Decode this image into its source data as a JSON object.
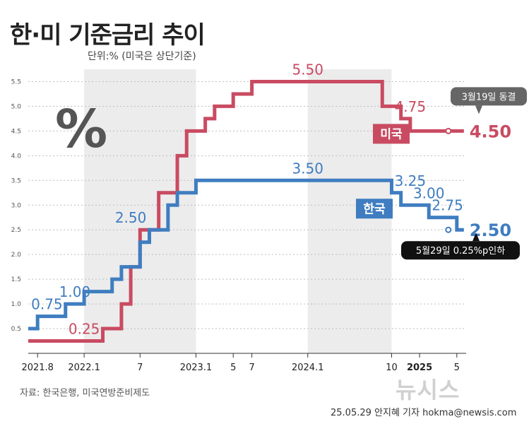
{
  "title": "한·미 기준금리 추이",
  "unit_note": "단위:% (미국은 상단기준)",
  "percent_symbol": "%",
  "source": "자료: 한국은행, 미국연방준비제도",
  "credit": "25.05.29 안지혜 기자 hokma@newsis.com",
  "watermark": "뉴시스",
  "colors": {
    "us": "#c94b62",
    "kr": "#3f7dc0",
    "grid_band": "#ececec"
  },
  "chart_data": {
    "type": "line",
    "title": "한·미 기준금리 추이",
    "subtitle": "단위:% (미국은 상단기준)",
    "ylim": [
      0,
      5.75
    ],
    "yticks": [
      0.5,
      1.0,
      1.5,
      2.0,
      2.5,
      3.0,
      3.5,
      4.0,
      4.5,
      5.0,
      5.5
    ],
    "ytick_labels": [
      "0.5",
      "1.0",
      "1.5",
      "2.0",
      "2.5",
      "3.0",
      "3.5",
      "4.0",
      "4.5",
      "5.0",
      "5.5"
    ],
    "xlim": [
      "2021.7",
      "2025.6"
    ],
    "xtick_labels": [
      {
        "label": "2021.8",
        "x": "2021.8",
        "bold": false
      },
      {
        "label": "2022.1",
        "x": "2022.1",
        "bold": false
      },
      {
        "label": "7",
        "x": "2022.7",
        "bold": false
      },
      {
        "label": "2023.1",
        "x": "2023.1",
        "bold": false
      },
      {
        "label": "5",
        "x": "2023.5",
        "bold": false
      },
      {
        "label": "7",
        "x": "2023.7",
        "bold": false
      },
      {
        "label": "2024.1",
        "x": "2024.1",
        "bold": false
      },
      {
        "label": "10",
        "x": "2024.10",
        "bold": false
      },
      {
        "label": "2025",
        "x": "2025.1",
        "bold": true
      },
      {
        "label": "5",
        "x": "2025.5",
        "bold": false
      }
    ],
    "shaded_ranges": [
      [
        "2022.1",
        "2023.1"
      ],
      [
        "2024.1",
        "2024.10"
      ]
    ],
    "series": [
      {
        "name": "미국",
        "color": "#c94b62",
        "steps": [
          {
            "x": "2021.7",
            "y": 0.25
          },
          {
            "x": "2022.3",
            "y": 0.5
          },
          {
            "x": "2022.5",
            "y": 1.0
          },
          {
            "x": "2022.6",
            "y": 1.75
          },
          {
            "x": "2022.7",
            "y": 2.5
          },
          {
            "x": "2022.9",
            "y": 3.25
          },
          {
            "x": "2022.11",
            "y": 4.0
          },
          {
            "x": "2022.12",
            "y": 4.5
          },
          {
            "x": "2023.2",
            "y": 4.75
          },
          {
            "x": "2023.3",
            "y": 5.0
          },
          {
            "x": "2023.5",
            "y": 5.25
          },
          {
            "x": "2023.7",
            "y": 5.5
          },
          {
            "x": "2024.9",
            "y": 5.0
          },
          {
            "x": "2024.11",
            "y": 4.75
          },
          {
            "x": "2024.12",
            "y": 4.5
          },
          {
            "x": "2025.5",
            "y": 4.5
          }
        ]
      },
      {
        "name": "한국",
        "color": "#3f7dc0",
        "steps": [
          {
            "x": "2021.7",
            "y": 0.5
          },
          {
            "x": "2021.8",
            "y": 0.75
          },
          {
            "x": "2021.11",
            "y": 1.0
          },
          {
            "x": "2022.1",
            "y": 1.25
          },
          {
            "x": "2022.4",
            "y": 1.5
          },
          {
            "x": "2022.5",
            "y": 1.75
          },
          {
            "x": "2022.7",
            "y": 2.25
          },
          {
            "x": "2022.8",
            "y": 2.5
          },
          {
            "x": "2022.10",
            "y": 3.0
          },
          {
            "x": "2022.11",
            "y": 3.25
          },
          {
            "x": "2023.1",
            "y": 3.5
          },
          {
            "x": "2024.10",
            "y": 3.25
          },
          {
            "x": "2024.11",
            "y": 3.0
          },
          {
            "x": "2025.2",
            "y": 2.75
          },
          {
            "x": "2025.5",
            "y": 2.5
          }
        ]
      }
    ],
    "value_labels": [
      {
        "series": "미국",
        "text": "0.25",
        "x": "2022.1",
        "y": 0.25
      },
      {
        "series": "미국",
        "text": "4.75",
        "x": "2024.12",
        "y": 4.75
      },
      {
        "series": "미국",
        "text": "5.50",
        "x": "2024.1",
        "y": 5.5
      },
      {
        "series": "한국",
        "text": "0.75",
        "x": "2021.9",
        "y": 0.75
      },
      {
        "series": "한국",
        "text": "1.00",
        "x": "2021.12",
        "y": 1.0
      },
      {
        "series": "한국",
        "text": "2.50",
        "x": "2022.6",
        "y": 2.5
      },
      {
        "series": "한국",
        "text": "3.50",
        "x": "2024.1",
        "y": 3.5
      },
      {
        "series": "한국",
        "text": "3.25",
        "x": "2024.12",
        "y": 3.25
      },
      {
        "series": "한국",
        "text": "3.00",
        "x": "2025.2",
        "y": 3.0
      },
      {
        "series": "한국",
        "text": "2.75",
        "x": "2025.4",
        "y": 2.75
      }
    ],
    "end_labels": [
      {
        "series": "미국",
        "text": "4.50"
      },
      {
        "series": "한국",
        "text": "2.50"
      }
    ],
    "legend": [
      {
        "series": "미국",
        "text": "미국"
      },
      {
        "series": "한국",
        "text": "한국"
      }
    ],
    "annotations": [
      {
        "text": "3월19일 동결",
        "series": "미국"
      },
      {
        "text": "5월29일 0.25%p인하",
        "series": "한국"
      }
    ]
  }
}
